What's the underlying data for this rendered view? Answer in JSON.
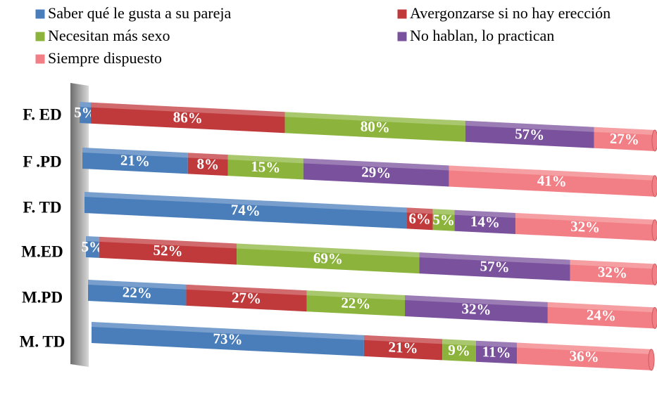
{
  "chart_data": {
    "type": "bar",
    "stacking": "percent",
    "orientation": "horizontal",
    "categories": [
      "F. ED",
      "F .PD",
      "F. TD",
      "M.ED",
      "M.PD",
      "M. TD"
    ],
    "series": [
      {
        "name": "Saber qué le gusta a su pareja",
        "color": "#4a7ebb",
        "values": [
          5,
          21,
          74,
          5,
          22,
          73
        ],
        "value_labels": [
          "5%",
          "21%",
          "74%",
          "5%",
          "22%",
          "73%"
        ]
      },
      {
        "name": "Avergonzarse si no hay erección",
        "color": "#c0393b",
        "values": [
          86,
          8,
          6,
          52,
          27,
          21
        ],
        "value_labels": [
          "86%",
          "8%",
          "6%",
          "52%",
          "27%",
          "21%"
        ]
      },
      {
        "name": "Necesitan más sexo",
        "color": "#8cb43c",
        "values": [
          80,
          15,
          5,
          69,
          22,
          9
        ],
        "value_labels": [
          "80%",
          "15%",
          "5%",
          "69%",
          "22%",
          "9%"
        ]
      },
      {
        "name": "No hablan, lo practican",
        "color": "#7a519d",
        "values": [
          57,
          29,
          14,
          57,
          32,
          11
        ],
        "value_labels": [
          "57%",
          "29%",
          "14%",
          "57%",
          "32%",
          "11%"
        ]
      },
      {
        "name": "Siempre dispuesto",
        "color": "#f27f85",
        "values": [
          27,
          41,
          32,
          32,
          24,
          36
        ],
        "value_labels": [
          "27%",
          "41%",
          "32%",
          "32%",
          "24%",
          "36%"
        ]
      }
    ]
  }
}
